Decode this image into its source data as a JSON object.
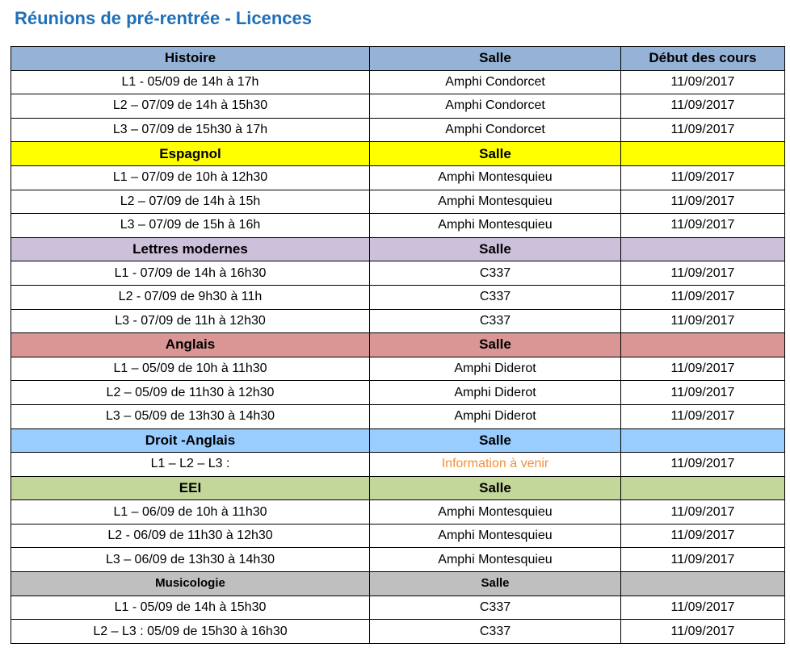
{
  "title": "Réunions de pré-rentrée - Licences",
  "colors": {
    "title": "#1f6fb9",
    "histoire": "#95b3d7",
    "espagnol": "#ffff00",
    "lettres": "#ccc0da",
    "anglais": "#da9694",
    "droit": "#99ccff",
    "eei": "#c4d79b",
    "musicologie": "#bfbfbf",
    "pending": "#f0913a"
  },
  "sections": [
    {
      "name": "Histoire",
      "salle_header": "Salle",
      "debut_header": "Début des cours",
      "rows": [
        {
          "slot": "L1  - 05/09 de 14h à 17h",
          "salle": "Amphi Condorcet",
          "debut": "11/09/2017"
        },
        {
          "slot": "L2 – 07/09 de 14h à 15h30",
          "salle": "Amphi Condorcet",
          "debut": "11/09/2017"
        },
        {
          "slot": "L3 – 07/09 de 15h30 à 17h",
          "salle": "Amphi Condorcet",
          "debut": "11/09/2017"
        }
      ]
    },
    {
      "name": "Espagnol",
      "salle_header": "Salle",
      "debut_header": "",
      "rows": [
        {
          "slot": "L1 – 07/09 de 10h à 12h30",
          "salle": "Amphi Montesquieu",
          "debut": "11/09/2017"
        },
        {
          "slot": "L2 – 07/09 de 14h à 15h",
          "salle": "Amphi Montesquieu",
          "debut": "11/09/2017"
        },
        {
          "slot": "L3 – 07/09 de 15h à 16h",
          "salle": "Amphi Montesquieu",
          "debut": "11/09/2017"
        }
      ]
    },
    {
      "name": "Lettres modernes",
      "salle_header": "Salle",
      "debut_header": "",
      "rows": [
        {
          "slot": "L1 - 07/09 de 14h à 16h30",
          "salle": "C337",
          "debut": "11/09/2017"
        },
        {
          "slot": "L2 - 07/09 de 9h30 à 11h",
          "salle": "C337",
          "debut": "11/09/2017"
        },
        {
          "slot": "L3 - 07/09 de 11h à 12h30",
          "salle": "C337",
          "debut": "11/09/2017"
        }
      ]
    },
    {
      "name": "Anglais",
      "salle_header": "Salle",
      "debut_header": "",
      "rows": [
        {
          "slot": "L1 – 05/09 de 10h à 11h30",
          "salle": "Amphi Diderot",
          "debut": "11/09/2017"
        },
        {
          "slot": "L2 – 05/09 de 11h30 à 12h30",
          "salle": "Amphi Diderot",
          "debut": "11/09/2017"
        },
        {
          "slot": "L3 – 05/09 de 13h30 à 14h30",
          "salle": "Amphi Diderot",
          "debut": "11/09/2017"
        }
      ]
    },
    {
      "name": "Droit -Anglais",
      "salle_header": "Salle",
      "debut_header": "",
      "rows": [
        {
          "slot": "L1 – L2 – L3 :",
          "salle": "Information à venir",
          "debut": "11/09/2017"
        }
      ]
    },
    {
      "name": "EEI",
      "salle_header": "Salle",
      "debut_header": "",
      "rows": [
        {
          "slot": "L1 – 06/09 de 10h à 11h30",
          "salle": "Amphi Montesquieu",
          "debut": "11/09/2017"
        },
        {
          "slot": "L2  - 06/09 de 11h30 à 12h30",
          "salle": "Amphi Montesquieu",
          "debut": "11/09/2017"
        },
        {
          "slot": "L3 – 06/09 de 13h30 à 14h30",
          "salle": "Amphi Montesquieu",
          "debut": "11/09/2017"
        }
      ]
    },
    {
      "name": "Musicologie",
      "salle_header": "Salle",
      "debut_header": "",
      "rows": [
        {
          "slot": "L1 -  05/09 de 14h à 15h30",
          "salle": "C337",
          "debut": "11/09/2017"
        },
        {
          "slot": "L2 – L3 : 05/09 de 15h30 à 16h30",
          "salle": "C337",
          "debut": "11/09/2017"
        }
      ]
    }
  ]
}
